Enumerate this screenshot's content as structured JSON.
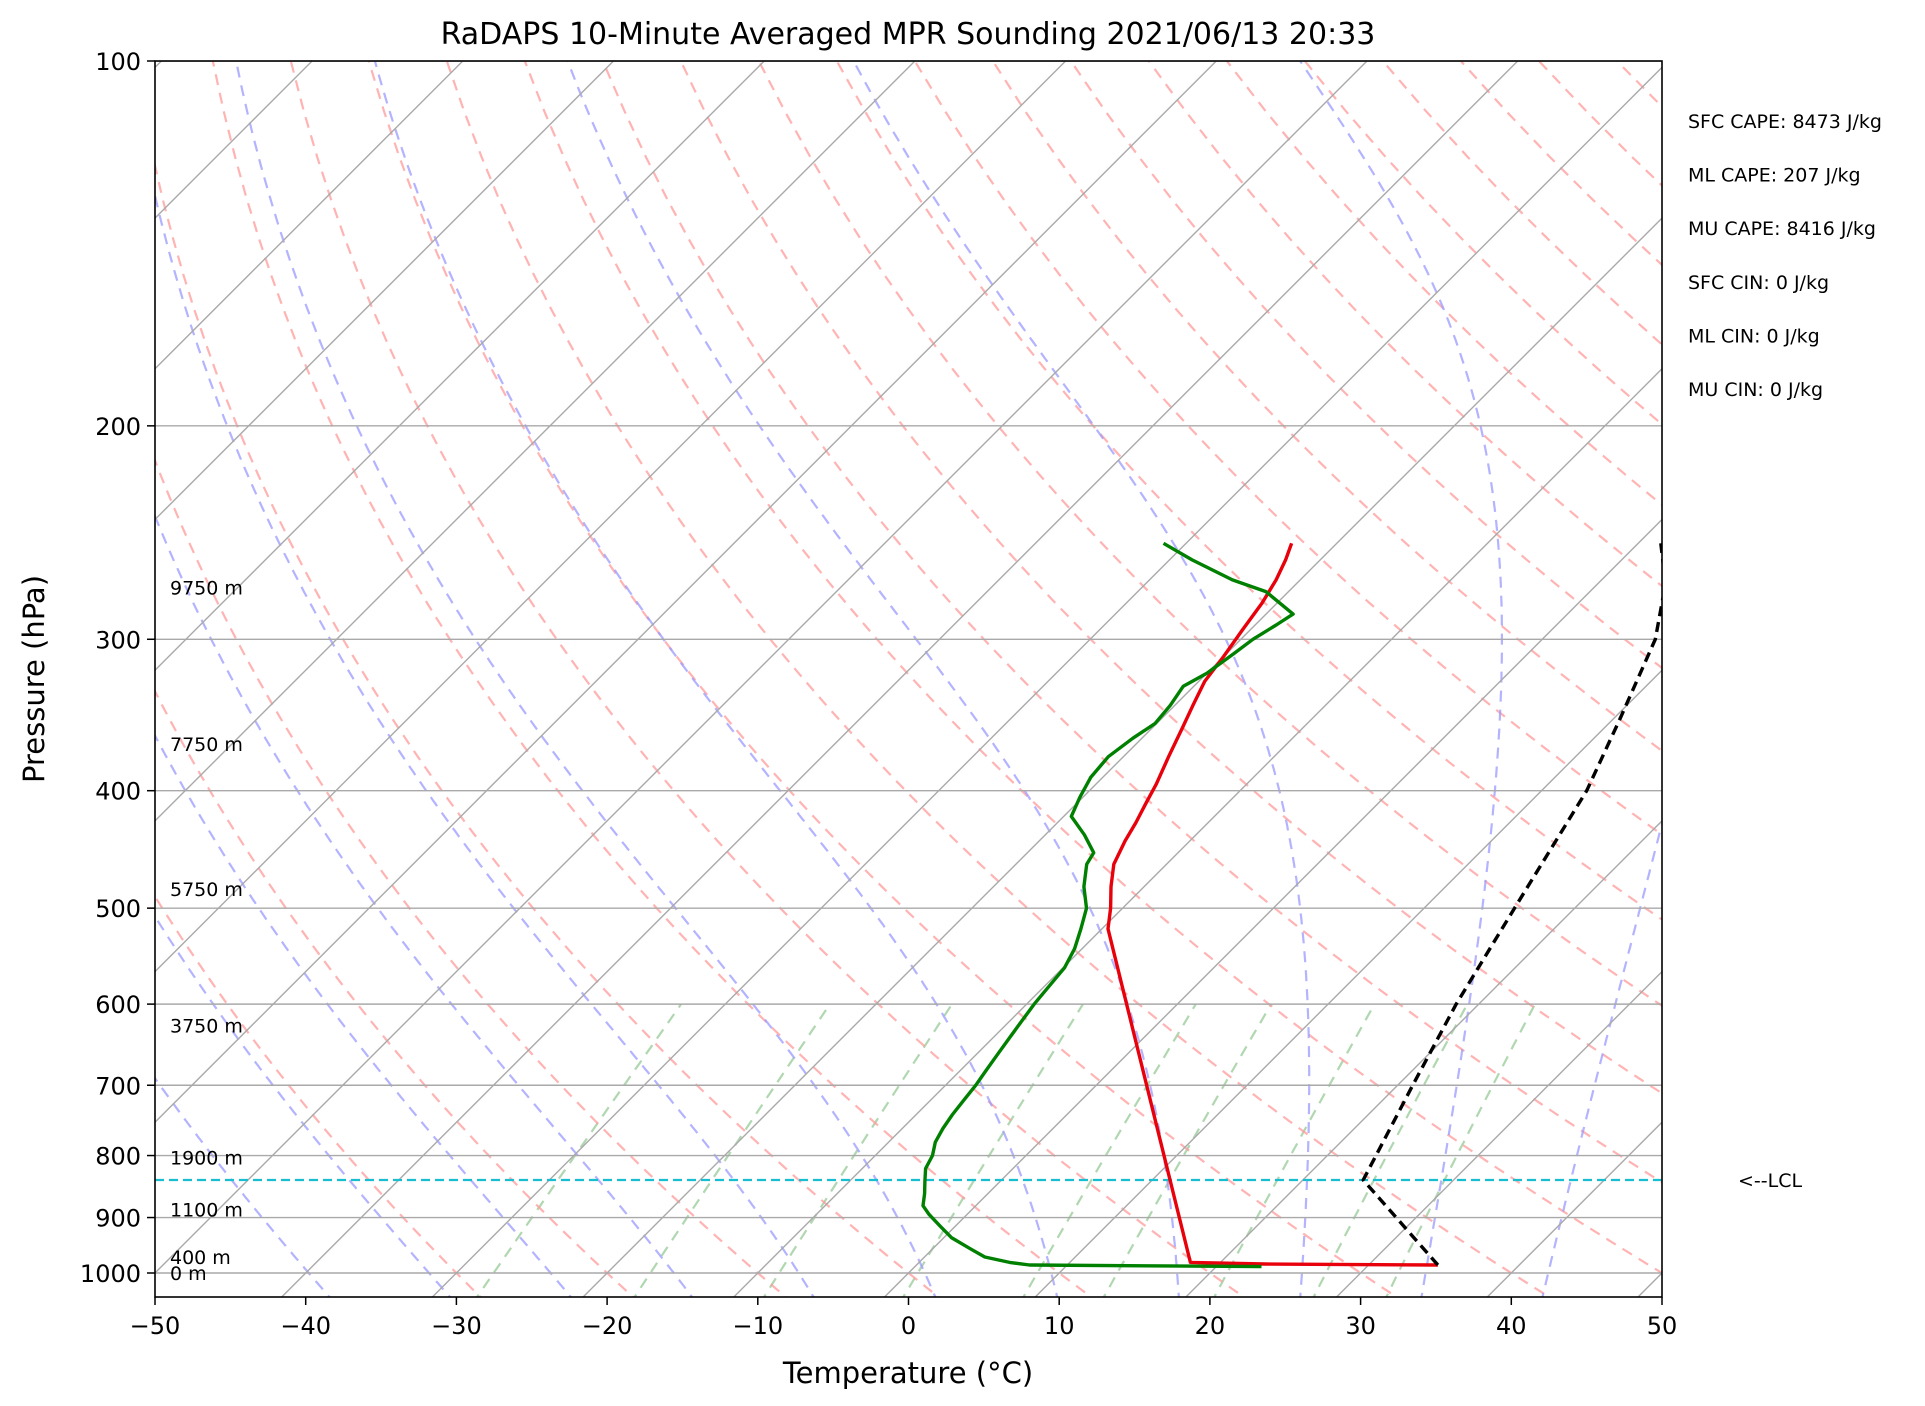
{
  "chart_data": {
    "type": "line",
    "title": "RaDAPS 10-Minute Averaged MPR Sounding 2021/06/13 20:33",
    "xlabel": "Temperature (°C)",
    "ylabel": "Pressure (hPa)",
    "xlim": [
      -50,
      50
    ],
    "ylim": [
      1050,
      100
    ],
    "y_scale": "log",
    "grid": true,
    "skew": "skew-T log-P",
    "x_ticks": [
      "−50",
      "−40",
      "−30",
      "−20",
      "−10",
      "0",
      "10",
      "20",
      "30",
      "40",
      "50"
    ],
    "y_ticks": [
      "100",
      "200",
      "300",
      "400",
      "500",
      "600",
      "700",
      "800",
      "900",
      "1000"
    ],
    "series": [
      {
        "name": "",
        "color": "#e8000b",
        "points": [
          [
            34.6,
            985
          ],
          [
            23.0,
            983
          ],
          [
            18.0,
            980
          ],
          [
            -9.6,
            520
          ],
          [
            -10.8,
            500
          ],
          [
            -12.2,
            480
          ],
          [
            -13.5,
            460
          ],
          [
            -14.3,
            440
          ],
          [
            -14.8,
            425
          ],
          [
            -15.4,
            410
          ],
          [
            -16.0,
            395
          ],
          [
            -17.0,
            375
          ],
          [
            -18.0,
            355
          ],
          [
            -18.8,
            340
          ],
          [
            -19.6,
            325
          ],
          [
            -20.0,
            310
          ],
          [
            -20.5,
            295
          ],
          [
            -21.0,
            280
          ],
          [
            -21.6,
            268
          ],
          [
            -22.3,
            258
          ],
          [
            -23.0,
            250
          ]
        ]
      },
      {
        "name": "",
        "color": "#008000",
        "points": [
          [
            23.0,
            988
          ],
          [
            18.0,
            987
          ],
          [
            7.5,
            985
          ],
          [
            6.0,
            980
          ],
          [
            4.0,
            970
          ],
          [
            2.5,
            955
          ],
          [
            0.5,
            935
          ],
          [
            -1.0,
            915
          ],
          [
            -2.5,
            895
          ],
          [
            -3.5,
            880
          ],
          [
            -4.2,
            860
          ],
          [
            -5.0,
            840
          ],
          [
            -5.8,
            820
          ],
          [
            -6.2,
            800
          ],
          [
            -6.9,
            780
          ],
          [
            -7.3,
            760
          ],
          [
            -7.6,
            740
          ],
          [
            -7.8,
            720
          ],
          [
            -8.0,
            700
          ],
          [
            -8.3,
            680
          ],
          [
            -8.6,
            660
          ],
          [
            -8.9,
            640
          ],
          [
            -9.2,
            620
          ],
          [
            -9.5,
            600
          ],
          [
            -9.7,
            580
          ],
          [
            -9.9,
            560
          ],
          [
            -10.5,
            540
          ],
          [
            -11.4,
            520
          ],
          [
            -12.4,
            500
          ],
          [
            -14.0,
            480
          ],
          [
            -15.3,
            460
          ],
          [
            -15.6,
            450
          ],
          [
            -17.4,
            435
          ],
          [
            -19.5,
            420
          ],
          [
            -20.2,
            405
          ],
          [
            -20.8,
            390
          ],
          [
            -21.0,
            375
          ],
          [
            -20.6,
            362
          ],
          [
            -20.1,
            352
          ],
          [
            -20.3,
            340
          ],
          [
            -20.7,
            328
          ],
          [
            -20.0,
            320
          ],
          [
            -19.5,
            308
          ],
          [
            -19.2,
            300
          ],
          [
            -18.6,
            292
          ],
          [
            -18.2,
            286
          ],
          [
            -21.5,
            274
          ],
          [
            -24.5,
            268
          ],
          [
            -28.5,
            258
          ],
          [
            -31.5,
            250
          ]
        ]
      },
      {
        "name": "",
        "color": "#000000",
        "dashed": true,
        "points": [
          [
            34.6,
            985
          ],
          [
            24.0,
            838
          ],
          [
            21.0,
            700
          ],
          [
            18.5,
            600
          ],
          [
            16.0,
            500
          ],
          [
            13.0,
            400
          ],
          [
            10.5,
            350
          ],
          [
            7.5,
            300
          ],
          [
            4.5,
            270
          ],
          [
            1.5,
            250
          ]
        ]
      }
    ],
    "lcl_pressure": 838,
    "lcl_label": "<--LCL",
    "height_labels": [
      {
        "text": "0 m",
        "p": 1000
      },
      {
        "text": "400 m",
        "p": 970
      },
      {
        "text": "1100 m",
        "p": 886
      },
      {
        "text": "1900 m",
        "p": 803
      },
      {
        "text": "3750 m",
        "p": 625
      },
      {
        "text": "5750 m",
        "p": 482
      },
      {
        "text": "7750 m",
        "p": 366
      },
      {
        "text": "9750 m",
        "p": 272
      }
    ],
    "annotations": [
      "SFC CAPE: 8473 J/kg",
      "ML CAPE: 207 J/kg",
      "MU CAPE: 8416 J/kg",
      "SFC CIN: 0 J/kg",
      "ML CIN: 0 J/kg",
      "MU CIN: 0 J/kg"
    ],
    "background_lines": {
      "isotherm_color": "#a9a9a9",
      "dry_adiabat_color": "#ff9999",
      "moist_adiabat_color": "#9999ff",
      "mixing_ratio_color": "#8fc68f"
    }
  }
}
